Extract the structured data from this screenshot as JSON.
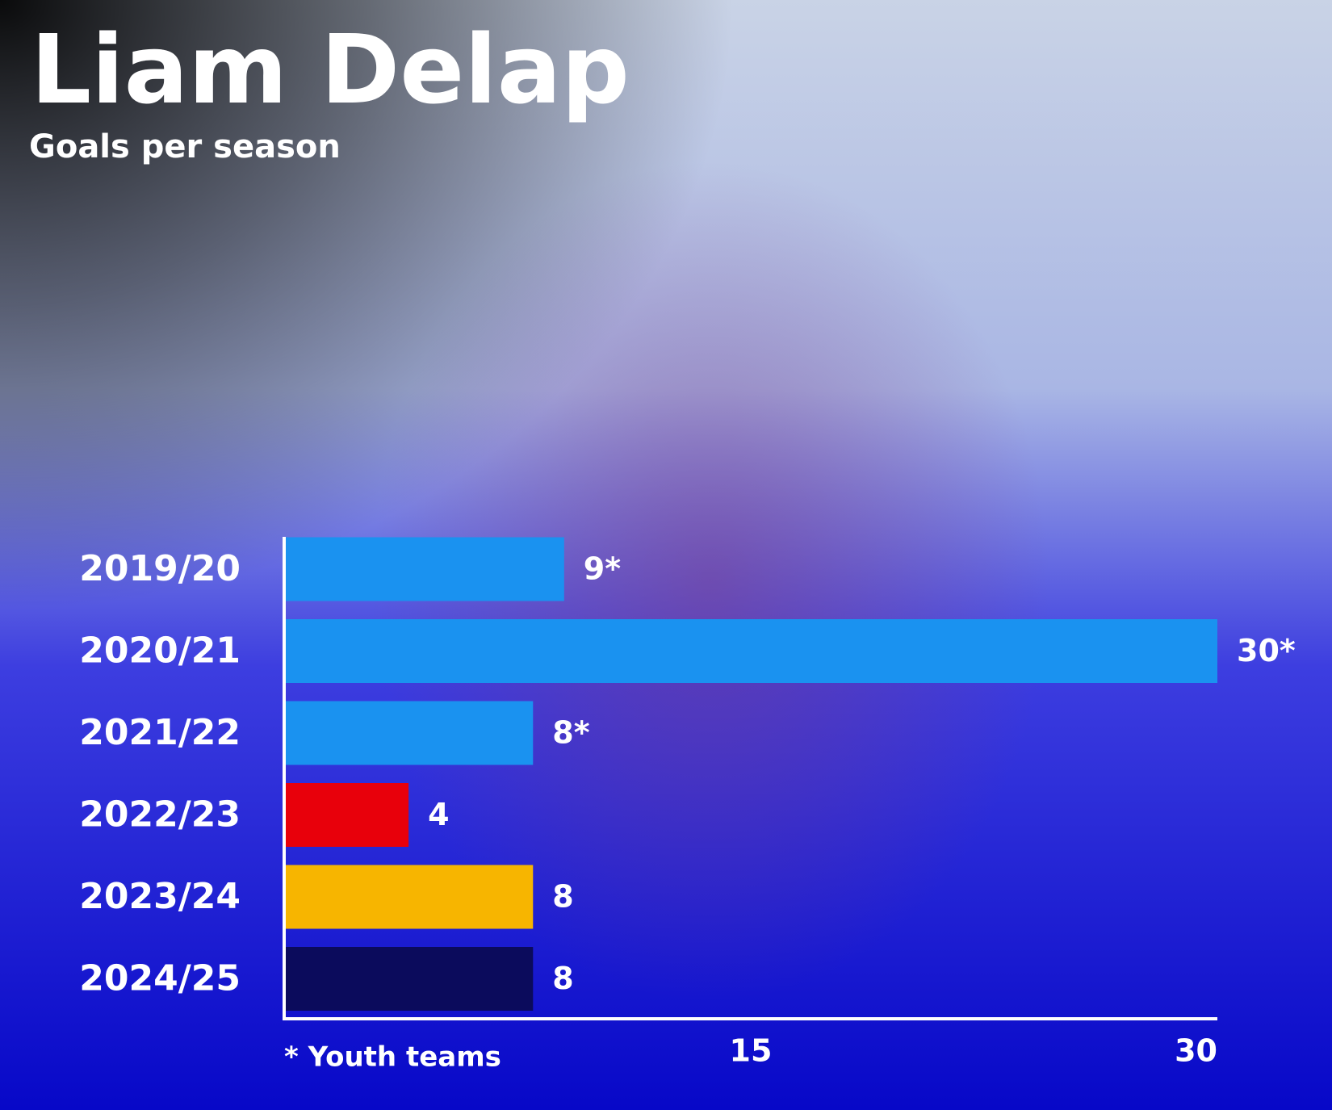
{
  "chart_data": {
    "type": "bar",
    "orientation": "horizontal",
    "title": "Liam Delap",
    "subtitle": "Goals per season",
    "categories": [
      "2019/20",
      "2020/21",
      "2021/22",
      "2022/23",
      "2023/24",
      "2024/25"
    ],
    "values": [
      9,
      30,
      8,
      4,
      8,
      8
    ],
    "value_labels": [
      "9*",
      "30*",
      "8*",
      "4",
      "8",
      "8"
    ],
    "colors": [
      "#1a92f0",
      "#1a92f0",
      "#1a92f0",
      "#e8000b",
      "#f7b500",
      "#0b0b5c"
    ],
    "xlim": [
      0,
      30
    ],
    "xticks": [
      15,
      30
    ],
    "footnote": "* Youth teams"
  }
}
